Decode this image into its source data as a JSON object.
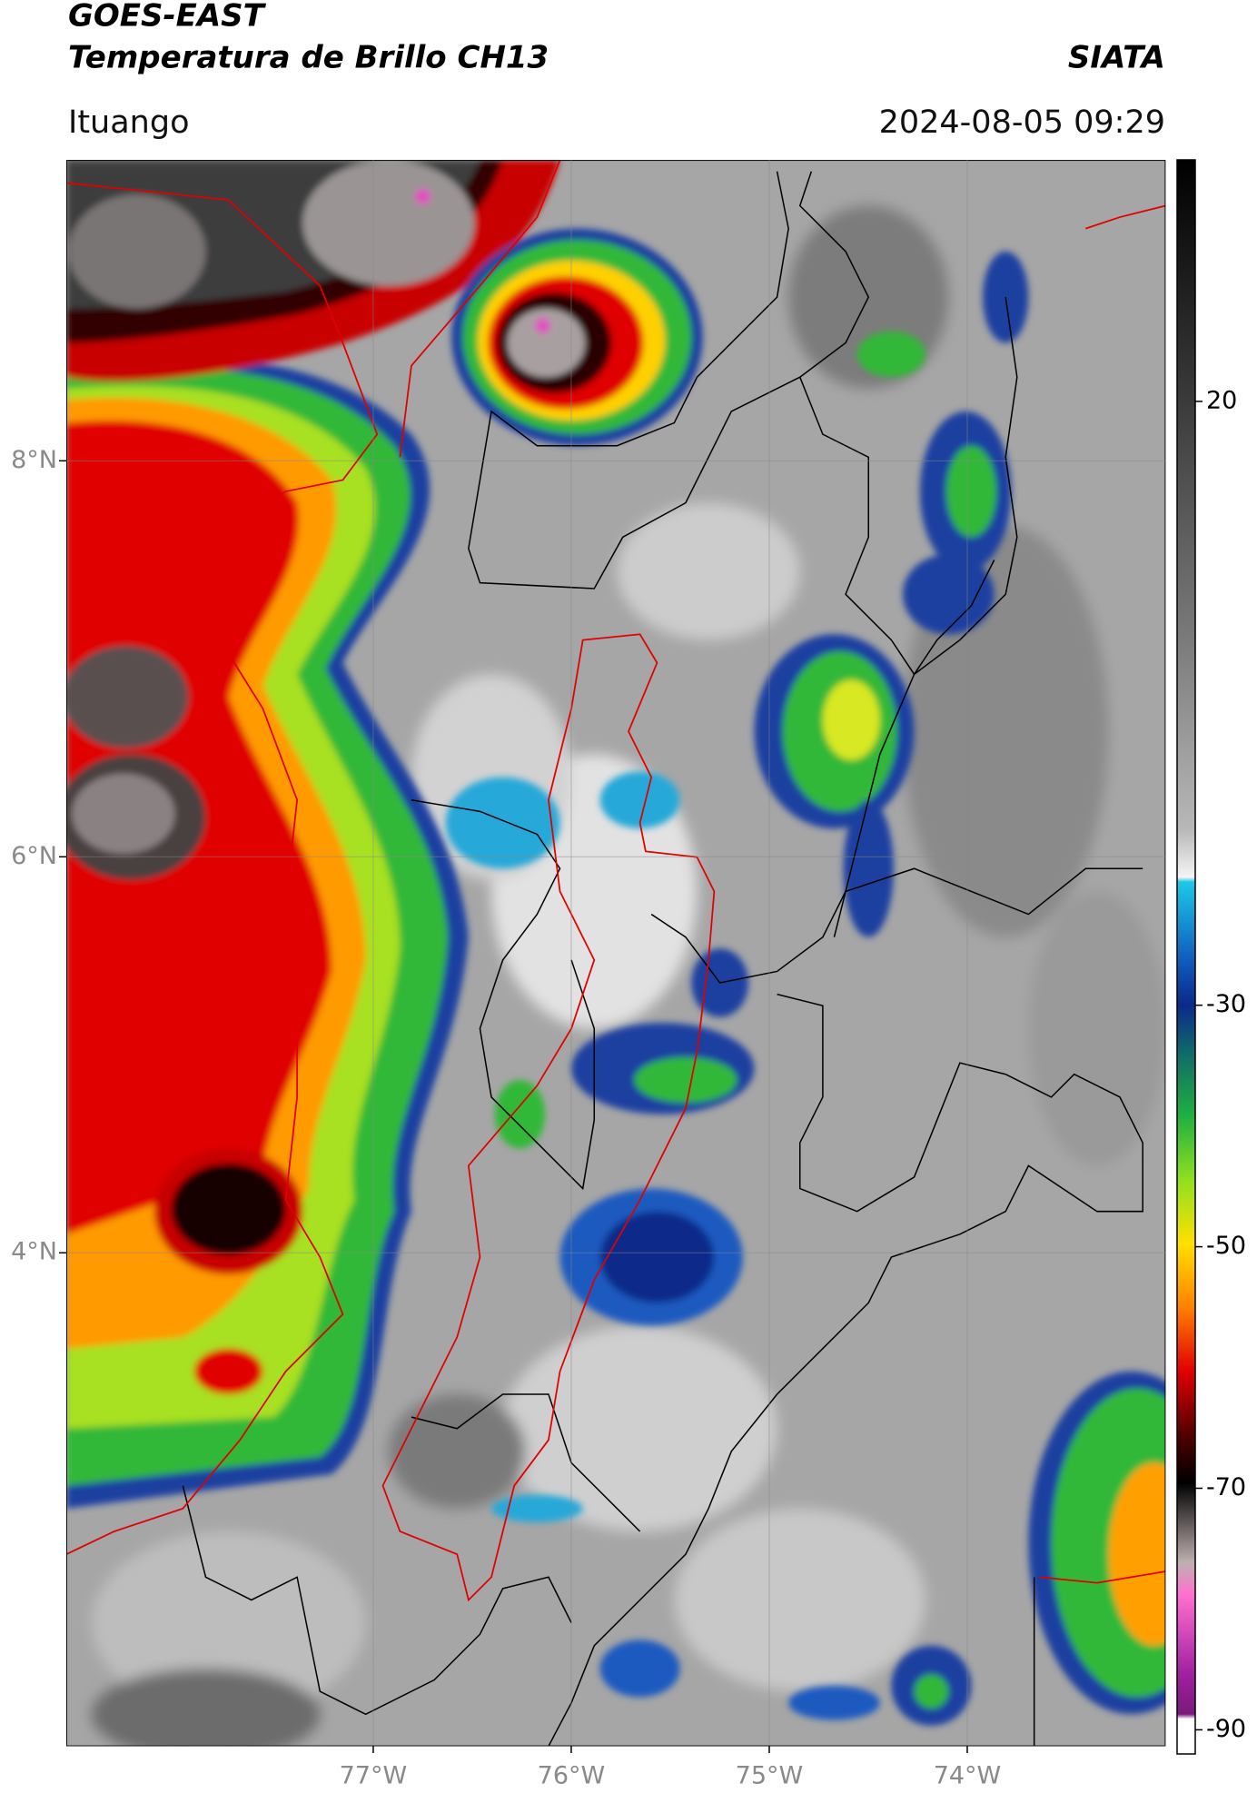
{
  "header": {
    "title_line1": "GOES-EAST",
    "title_line2": "Temperatura de Brillo CH13",
    "source": "SIATA",
    "location": "Ituango",
    "datetime": "2024-08-05 09:29"
  },
  "map": {
    "xlim": [
      -78.55,
      -73.0
    ],
    "ylim": [
      1.51,
      9.52
    ],
    "xticks": [
      {
        "value": -77,
        "label": "77°W"
      },
      {
        "value": -76,
        "label": "76°W"
      },
      {
        "value": -75,
        "label": "75°W"
      },
      {
        "value": -74,
        "label": "74°W"
      }
    ],
    "yticks": [
      {
        "value": 8,
        "label": "8°N"
      },
      {
        "value": 6,
        "label": "6°N"
      },
      {
        "value": 4,
        "label": "4°N"
      }
    ],
    "grid": true
  },
  "colorbar": {
    "clim": [
      -92,
      40
    ],
    "ticks": [
      20,
      -30,
      -50,
      -70,
      -90
    ]
  }
}
